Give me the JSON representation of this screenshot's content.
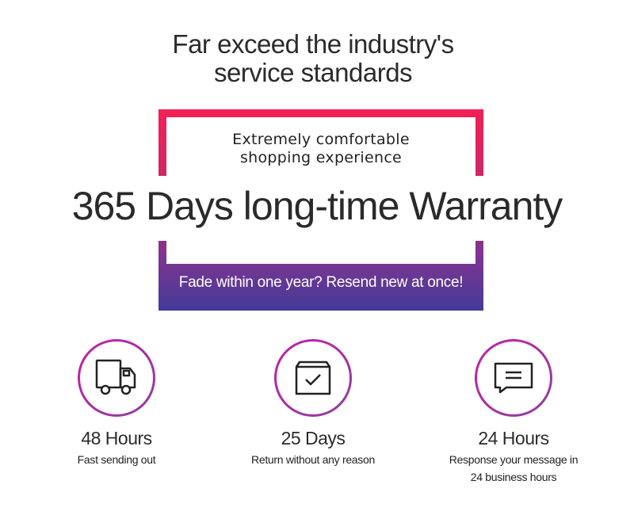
{
  "header": {
    "title_line1": "Far exceed the industry's",
    "title_line2": "service standards"
  },
  "banner": {
    "subtitle_line1": "Extremely comfortable",
    "subtitle_line2": "shopping experience",
    "headline": "365 Days long-time Warranty",
    "band_text": "Fade within one year? Resend new at once!"
  },
  "colors": {
    "gradient_top": "#f41f55",
    "gradient_bottom": "#433b98",
    "circle": "#c41fa8"
  },
  "features": [
    {
      "icon": "truck-icon",
      "label": "48 Hours",
      "desc_line1": "Fast sending out",
      "desc_line2": ""
    },
    {
      "icon": "box-check-icon",
      "label": "25 Days",
      "desc_line1": "Return without any reason",
      "desc_line2": ""
    },
    {
      "icon": "chat-bubble-icon",
      "label": "24 Hours",
      "desc_line1": "Response your message in",
      "desc_line2": "24 business hours"
    }
  ]
}
